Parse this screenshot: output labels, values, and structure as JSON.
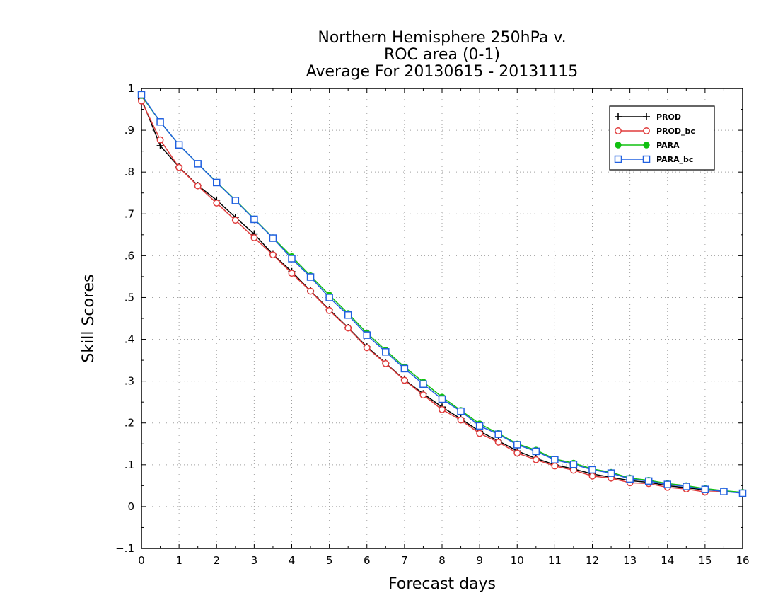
{
  "chart_data": {
    "type": "line",
    "title": [
      "Northern Hemisphere 250hPa v.",
      "ROC area (0-1)",
      "Average For 20130615 - 20131115"
    ],
    "xlabel": "Forecast days",
    "ylabel": "Skill Scores",
    "xlim": [
      0,
      16
    ],
    "ylim": [
      -0.1,
      1
    ],
    "xticks": [
      0,
      1,
      2,
      3,
      4,
      5,
      6,
      7,
      8,
      9,
      10,
      11,
      12,
      13,
      14,
      15,
      16
    ],
    "yticks": [
      -0.1,
      0,
      0.1,
      0.2,
      0.3,
      0.4,
      0.5,
      0.6,
      0.7,
      0.8,
      0.9,
      1
    ],
    "grid": true,
    "legend_position": "top-right",
    "x": [
      0,
      0.5,
      1,
      1.5,
      2,
      2.5,
      3,
      3.5,
      4,
      4.5,
      5,
      5.5,
      6,
      6.5,
      7,
      7.5,
      8,
      8.5,
      9,
      9.5,
      10,
      10.5,
      11,
      11.5,
      12,
      12.5,
      13,
      13.5,
      14,
      14.5,
      15,
      15.5,
      16
    ],
    "series": [
      {
        "name": "PROD",
        "color": "#000000",
        "marker": "plus",
        "values": [
          0.975,
          0.863,
          0.812,
          0.768,
          0.733,
          0.692,
          0.652,
          0.603,
          0.562,
          0.516,
          0.471,
          0.428,
          0.382,
          0.343,
          0.303,
          0.27,
          0.238,
          0.21,
          0.18,
          0.157,
          0.133,
          0.115,
          0.1,
          0.09,
          0.078,
          0.07,
          0.062,
          0.058,
          0.05,
          0.045,
          0.04,
          0.037,
          0.033
        ]
      },
      {
        "name": "PROD_bc",
        "color": "#e03c3c",
        "marker": "circle-open",
        "values": [
          0.97,
          0.877,
          0.811,
          0.767,
          0.726,
          0.685,
          0.643,
          0.602,
          0.558,
          0.515,
          0.469,
          0.427,
          0.38,
          0.342,
          0.302,
          0.267,
          0.232,
          0.207,
          0.175,
          0.154,
          0.128,
          0.112,
          0.097,
          0.087,
          0.073,
          0.068,
          0.057,
          0.055,
          0.046,
          0.042,
          0.035,
          0.036,
          0.033
        ]
      },
      {
        "name": "PARA",
        "color": "#10c010",
        "marker": "circle-filled",
        "values": [
          0.983,
          0.92,
          0.865,
          0.82,
          0.776,
          0.733,
          0.688,
          0.643,
          0.598,
          0.552,
          0.506,
          0.462,
          0.415,
          0.374,
          0.334,
          0.298,
          0.262,
          0.23,
          0.198,
          0.175,
          0.15,
          0.135,
          0.114,
          0.104,
          0.09,
          0.082,
          0.068,
          0.063,
          0.055,
          0.05,
          0.043,
          0.038,
          0.034
        ]
      },
      {
        "name": "PARA_bc",
        "color": "#2060e0",
        "marker": "square-open",
        "values": [
          0.985,
          0.92,
          0.865,
          0.82,
          0.775,
          0.732,
          0.687,
          0.642,
          0.593,
          0.549,
          0.5,
          0.458,
          0.41,
          0.37,
          0.33,
          0.293,
          0.257,
          0.228,
          0.193,
          0.173,
          0.148,
          0.132,
          0.112,
          0.101,
          0.088,
          0.08,
          0.066,
          0.061,
          0.053,
          0.048,
          0.041,
          0.036,
          0.032
        ]
      }
    ]
  }
}
